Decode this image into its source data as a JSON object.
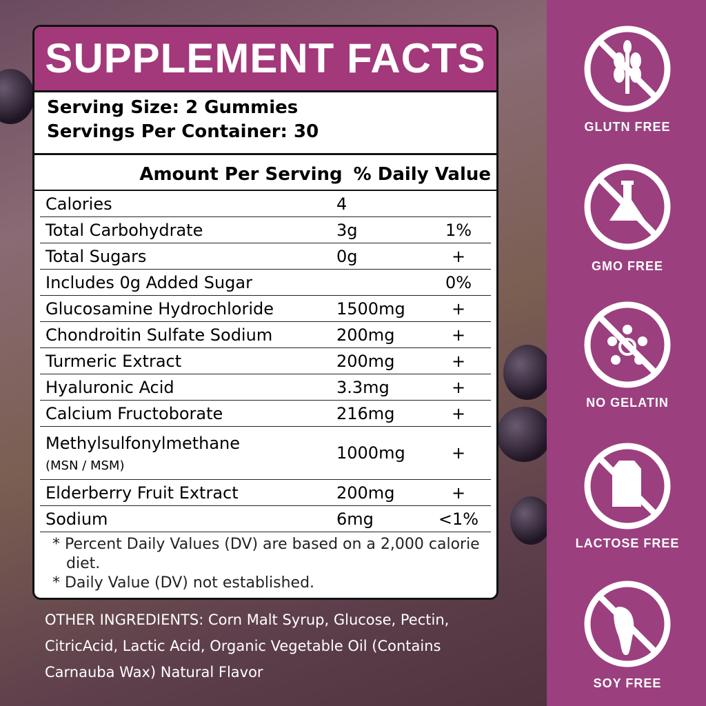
{
  "label": {
    "title": "SUPPLEMENT FACTS",
    "serving_size": "Serving Size: 2 Gummies",
    "servings_per_container": "Servings Per Container: 30",
    "header": {
      "amount": "Amount Per Serving",
      "dv": "% Daily Value"
    },
    "rows": [
      {
        "name": "Calories",
        "amount": "4"
      },
      {
        "name": "Total Carbohydrate",
        "amount": "3g",
        "dv": "1%"
      },
      {
        "name": "Total Sugars",
        "amount": "0g",
        "dv": "+"
      },
      {
        "name": "Includes 0g Added Sugar",
        "dv": "0%"
      },
      {
        "name": "Glucosamine Hydrochloride",
        "amount": "1500mg",
        "dv": "+"
      },
      {
        "name": "Chondroitin Sulfate Sodium",
        "amount": "200mg",
        "dv": "+"
      },
      {
        "name": "Turmeric Extract",
        "amount": "200mg",
        "dv": "+"
      },
      {
        "name": "Hyaluronic Acid",
        "amount": "3.3mg",
        "dv": "+"
      },
      {
        "name": "Calcium Fructoborate",
        "amount": "216mg",
        "dv": "+"
      },
      {
        "name": "Methylsulfonylmethane",
        "note": "(MSN / MSM)",
        "amount": "1000mg",
        "dv": "+"
      },
      {
        "name": "Elderberry Fruit Extract",
        "amount": "200mg",
        "dv": "+"
      },
      {
        "name": "Sodium",
        "amount": "6mg",
        "dv": "<1%"
      }
    ],
    "footnotes": [
      "* Percent Daily Values (DV) are based on a 2,000 calorie diet.",
      "* Daily Value (DV) not established."
    ]
  },
  "other_ingredients": "OTHER INGREDIENTS: Corn Malt Syrup, Glucose, Pectin, CitricAcid, Lactic Acid, Organic Vegetable Oil (Contains Carnauba Wax)  Natural Flavor",
  "badges": [
    "GLUTN FREE",
    "GMO FREE",
    "NO GELATIN",
    "LACTOSE FREE",
    "SOY FREE"
  ]
}
